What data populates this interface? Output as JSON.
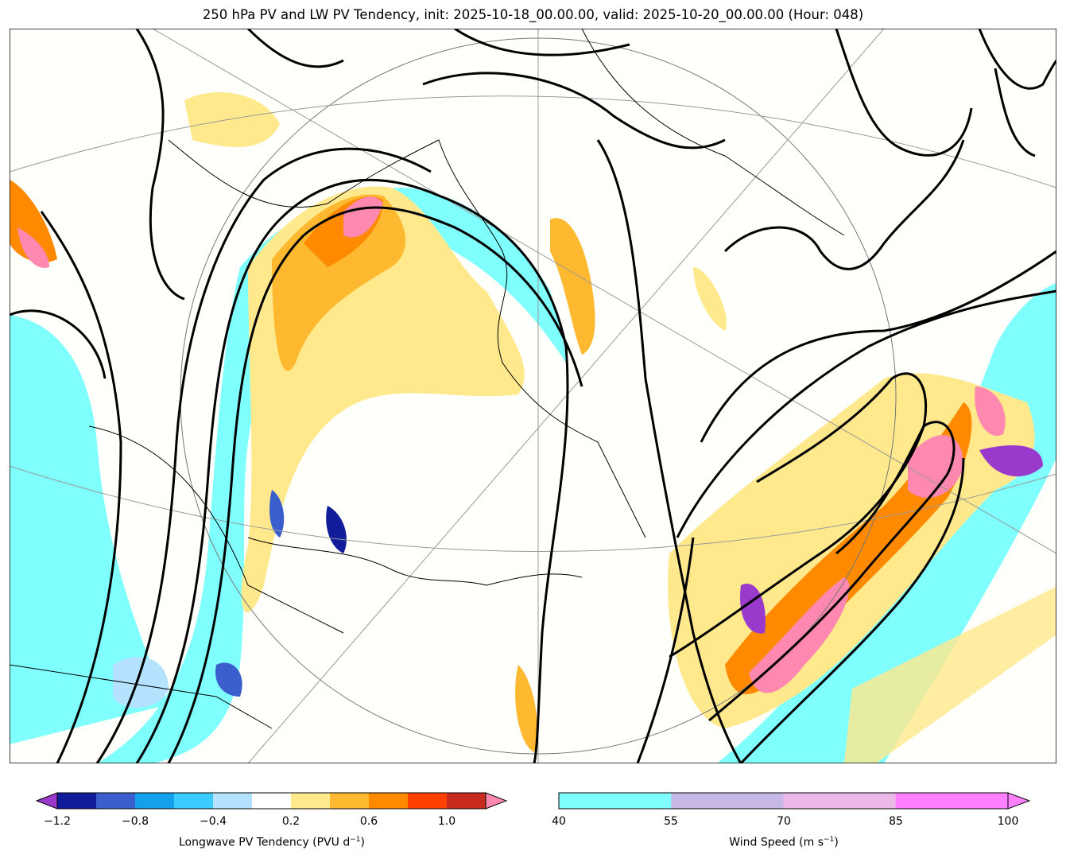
{
  "title": "250 hPa PV and LW PV Tendency, init: 2025-10-18_00.00.00, valid: 2025-10-20_00.00.00 (Hour: 048)",
  "pv_colorbar": {
    "label": "Longwave PV Tendency (PVU d",
    "label_sup": "−1",
    "label_end": ")",
    "ticks": [
      "−1.2",
      "−0.8",
      "−0.4",
      "0.2",
      "0.6",
      "1.0"
    ],
    "bounds": [
      -1.2,
      -1.0,
      -0.8,
      -0.6,
      -0.4,
      -0.2,
      0.2,
      0.4,
      0.6,
      0.8,
      1.0,
      1.2
    ],
    "colors": [
      "#101c9a",
      "#3a5fcd",
      "#14a0ea",
      "#3ccbff",
      "#b4e2ff",
      "#ffffff",
      "#ffe98c",
      "#ffb930",
      "#ff8a00",
      "#ff4000",
      "#c92a1e"
    ],
    "under": "#9a3acd",
    "over": "#ff88b0"
  },
  "wind_colorbar": {
    "label": "Wind Speed (m s",
    "label_sup": "−1",
    "label_end": ")",
    "ticks": [
      "40",
      "55",
      "70",
      "85",
      "100"
    ],
    "colors": [
      "#80ffff",
      "#c8b8e8",
      "#ecb8e8",
      "#ff80ff"
    ]
  }
}
